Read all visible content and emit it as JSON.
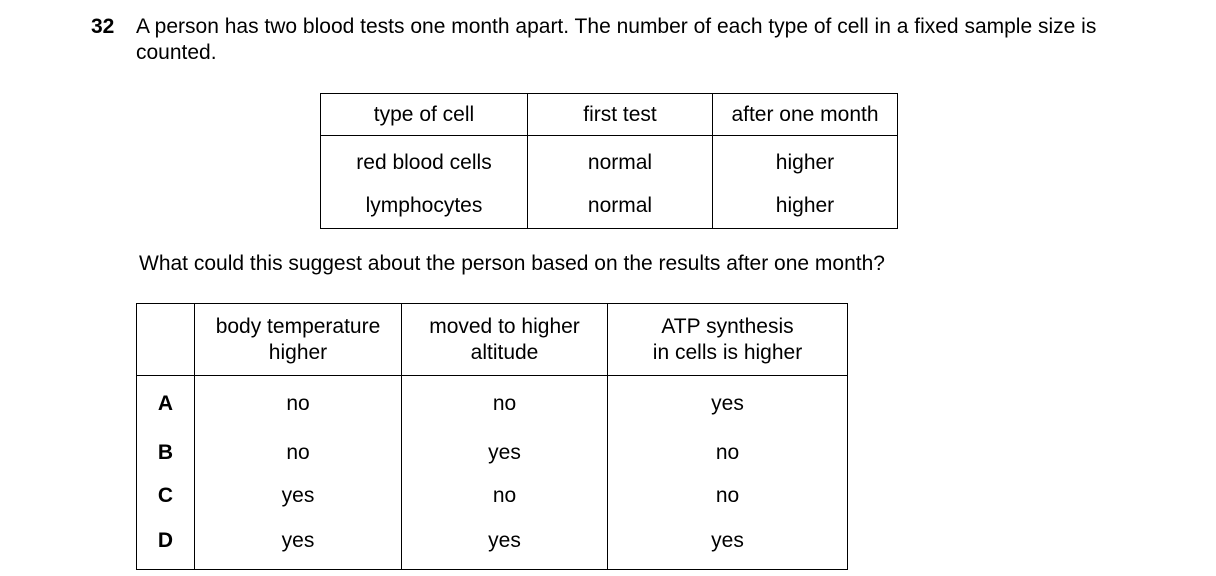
{
  "question": {
    "number": "32",
    "text": "A person has two blood tests one month apart. The number of each type of cell in a fixed sample size is counted."
  },
  "results_table": {
    "headers": [
      "type of cell",
      "first test",
      "after one month"
    ],
    "rows": [
      [
        "red blood cells",
        "normal",
        "higher"
      ],
      [
        "lymphocytes",
        "normal",
        "higher"
      ]
    ]
  },
  "prompt": "What could this suggest about the person based on the results after one month?",
  "options_table": {
    "headers": [
      [
        "body temperature",
        "higher"
      ],
      [
        "moved to higher",
        "altitude"
      ],
      [
        "ATP synthesis",
        "in cells is higher"
      ]
    ],
    "rows": [
      {
        "key": "A",
        "values": [
          "no",
          "no",
          "yes"
        ]
      },
      {
        "key": "B",
        "values": [
          "no",
          "yes",
          "no"
        ]
      },
      {
        "key": "C",
        "values": [
          "yes",
          "no",
          "no"
        ]
      },
      {
        "key": "D",
        "values": [
          "yes",
          "yes",
          "yes"
        ]
      }
    ]
  }
}
